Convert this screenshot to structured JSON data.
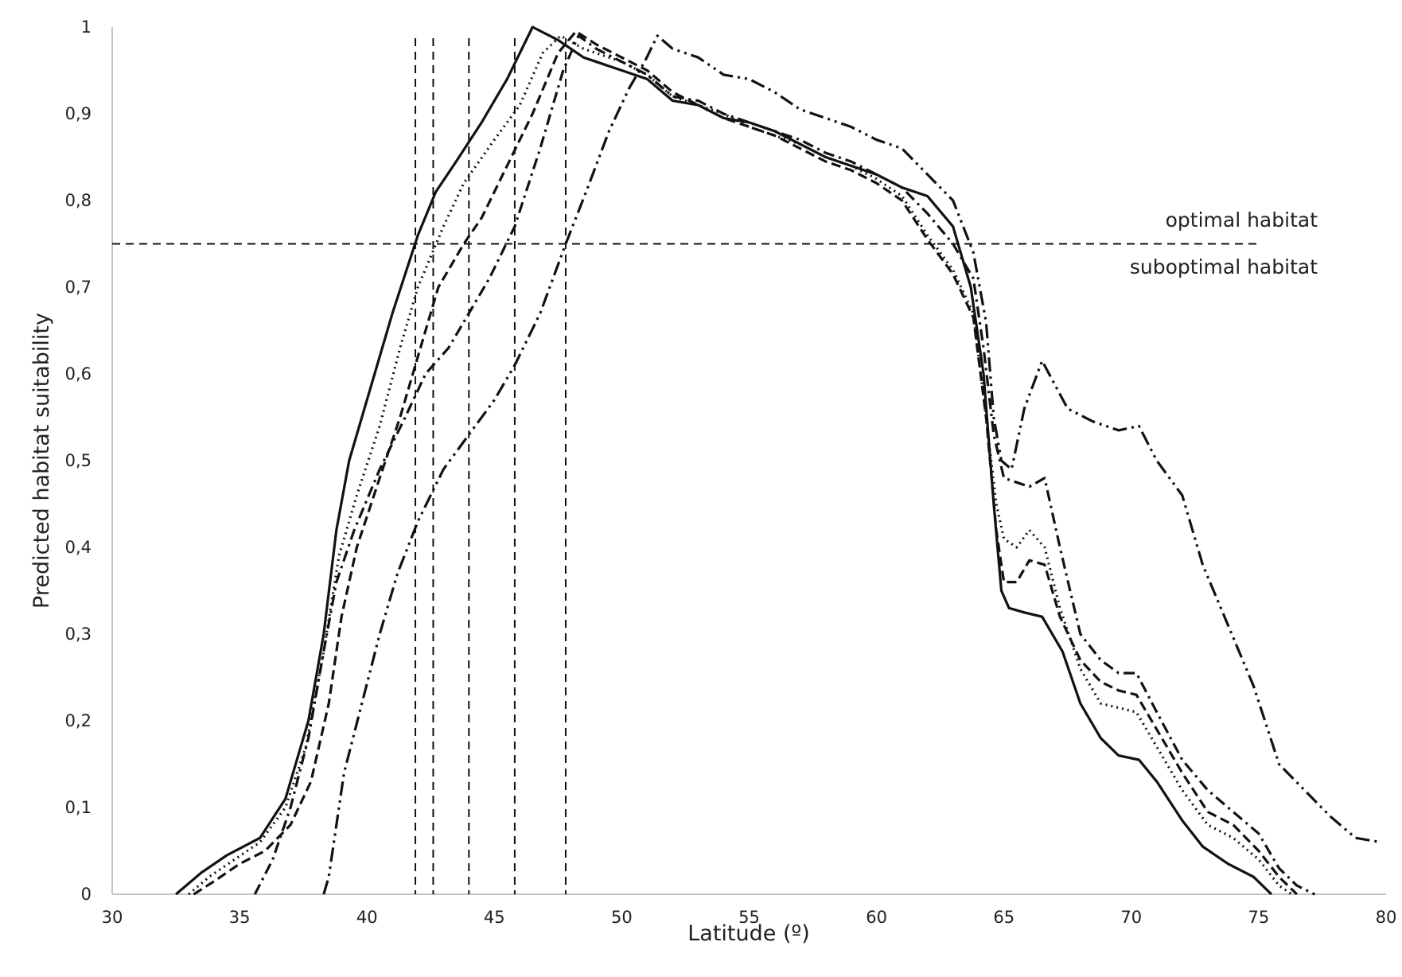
{
  "chart_data": {
    "type": "line",
    "title": "",
    "xlabel": "Latitude (º)",
    "ylabel": "Predicted habitat suitability",
    "xlim": [
      30,
      80
    ],
    "ylim": [
      0,
      1
    ],
    "x_ticks": [
      30,
      35,
      40,
      45,
      50,
      55,
      60,
      65,
      70,
      75,
      80
    ],
    "x_tick_labels": [
      "30",
      "35",
      "40",
      "45",
      "50",
      "55",
      "60",
      "65",
      "70",
      "75",
      "80"
    ],
    "y_ticks": [
      0,
      0.1,
      0.2,
      0.3,
      0.4,
      0.5,
      0.6,
      0.7,
      0.8,
      0.9,
      1
    ],
    "y_tick_labels": [
      "0",
      "0,1",
      "0,2",
      "0,3",
      "0,4",
      "0,5",
      "0,6",
      "0,7",
      "0,8",
      "0,9",
      "1"
    ],
    "threshold": {
      "y": 0.75,
      "label_above": "optimal habitat",
      "label_below": "suboptimal habitat"
    },
    "vertical_lines": [
      41.9,
      42.6,
      44.0,
      45.8,
      47.8
    ],
    "series": [
      {
        "name": "solid",
        "dash": "",
        "points": [
          [
            32.5,
            0
          ],
          [
            33.5,
            0.025
          ],
          [
            34.5,
            0.045
          ],
          [
            35.8,
            0.065
          ],
          [
            36.8,
            0.11
          ],
          [
            37.7,
            0.2
          ],
          [
            38.3,
            0.3
          ],
          [
            38.8,
            0.42
          ],
          [
            39.3,
            0.5
          ],
          [
            40.0,
            0.57
          ],
          [
            41.0,
            0.67
          ],
          [
            42.0,
            0.76
          ],
          [
            42.7,
            0.81
          ],
          [
            43.5,
            0.845
          ],
          [
            44.5,
            0.89
          ],
          [
            45.5,
            0.94
          ],
          [
            46.5,
            1.0
          ],
          [
            47.5,
            0.985
          ],
          [
            48.5,
            0.965
          ],
          [
            50.0,
            0.95
          ],
          [
            51.0,
            0.94
          ],
          [
            52.0,
            0.915
          ],
          [
            53.0,
            0.91
          ],
          [
            54.0,
            0.895
          ],
          [
            55.0,
            0.89
          ],
          [
            56.0,
            0.88
          ],
          [
            57.0,
            0.865
          ],
          [
            58.0,
            0.85
          ],
          [
            59.0,
            0.84
          ],
          [
            60.0,
            0.83
          ],
          [
            61.0,
            0.815
          ],
          [
            62.0,
            0.805
          ],
          [
            63.0,
            0.77
          ],
          [
            63.7,
            0.7
          ],
          [
            64.2,
            0.6
          ],
          [
            64.6,
            0.45
          ],
          [
            64.9,
            0.35
          ],
          [
            65.2,
            0.33
          ],
          [
            65.8,
            0.325
          ],
          [
            66.5,
            0.32
          ],
          [
            67.3,
            0.28
          ],
          [
            68.0,
            0.22
          ],
          [
            68.8,
            0.18
          ],
          [
            69.5,
            0.16
          ],
          [
            70.3,
            0.155
          ],
          [
            71.0,
            0.13
          ],
          [
            72.0,
            0.085
          ],
          [
            72.8,
            0.055
          ],
          [
            73.8,
            0.035
          ],
          [
            74.8,
            0.02
          ],
          [
            75.5,
            0
          ]
        ]
      },
      {
        "name": "dotted",
        "dash": "2 5",
        "points": [
          [
            33.0,
            0
          ],
          [
            33.8,
            0.02
          ],
          [
            34.8,
            0.04
          ],
          [
            35.8,
            0.06
          ],
          [
            36.8,
            0.1
          ],
          [
            37.6,
            0.17
          ],
          [
            38.3,
            0.28
          ],
          [
            38.9,
            0.39
          ],
          [
            39.6,
            0.46
          ],
          [
            40.5,
            0.54
          ],
          [
            41.3,
            0.63
          ],
          [
            42.0,
            0.7
          ],
          [
            43.0,
            0.77
          ],
          [
            43.8,
            0.82
          ],
          [
            45.0,
            0.87
          ],
          [
            46.0,
            0.91
          ],
          [
            46.9,
            0.97
          ],
          [
            47.6,
            0.99
          ],
          [
            48.5,
            0.975
          ],
          [
            50.0,
            0.96
          ],
          [
            51.0,
            0.945
          ],
          [
            52.0,
            0.92
          ],
          [
            53.0,
            0.91
          ],
          [
            54.0,
            0.9
          ],
          [
            55.0,
            0.885
          ],
          [
            56.0,
            0.875
          ],
          [
            57.0,
            0.865
          ],
          [
            58.0,
            0.85
          ],
          [
            59.0,
            0.84
          ],
          [
            60.0,
            0.825
          ],
          [
            61.0,
            0.805
          ],
          [
            62.0,
            0.76
          ],
          [
            63.0,
            0.72
          ],
          [
            63.8,
            0.67
          ],
          [
            64.3,
            0.55
          ],
          [
            64.7,
            0.45
          ],
          [
            65.0,
            0.41
          ],
          [
            65.5,
            0.4
          ],
          [
            66.0,
            0.42
          ],
          [
            66.6,
            0.4
          ],
          [
            67.2,
            0.33
          ],
          [
            68.0,
            0.26
          ],
          [
            68.8,
            0.22
          ],
          [
            69.5,
            0.215
          ],
          [
            70.2,
            0.21
          ],
          [
            71.0,
            0.17
          ],
          [
            72.0,
            0.12
          ],
          [
            73.0,
            0.08
          ],
          [
            74.0,
            0.065
          ],
          [
            75.0,
            0.04
          ],
          [
            75.8,
            0.01
          ],
          [
            76.3,
            0
          ]
        ]
      },
      {
        "name": "dashed",
        "dash": "12 6",
        "points": [
          [
            33.2,
            0
          ],
          [
            34.0,
            0.015
          ],
          [
            35.0,
            0.035
          ],
          [
            36.0,
            0.05
          ],
          [
            37.0,
            0.08
          ],
          [
            37.8,
            0.13
          ],
          [
            38.5,
            0.22
          ],
          [
            39.0,
            0.32
          ],
          [
            39.6,
            0.4
          ],
          [
            40.5,
            0.48
          ],
          [
            41.3,
            0.55
          ],
          [
            42.0,
            0.62
          ],
          [
            42.8,
            0.7
          ],
          [
            43.8,
            0.75
          ],
          [
            44.5,
            0.78
          ],
          [
            45.5,
            0.84
          ],
          [
            46.5,
            0.9
          ],
          [
            47.5,
            0.97
          ],
          [
            48.2,
            0.995
          ],
          [
            49.0,
            0.98
          ],
          [
            50.0,
            0.965
          ],
          [
            51.0,
            0.95
          ],
          [
            52.0,
            0.925
          ],
          [
            53.0,
            0.91
          ],
          [
            54.0,
            0.895
          ],
          [
            55.0,
            0.885
          ],
          [
            56.0,
            0.875
          ],
          [
            57.0,
            0.86
          ],
          [
            58.0,
            0.845
          ],
          [
            59.0,
            0.835
          ],
          [
            60.0,
            0.82
          ],
          [
            61.0,
            0.8
          ],
          [
            62.0,
            0.755
          ],
          [
            63.0,
            0.715
          ],
          [
            63.8,
            0.665
          ],
          [
            64.3,
            0.55
          ],
          [
            64.7,
            0.42
          ],
          [
            65.0,
            0.36
          ],
          [
            65.5,
            0.36
          ],
          [
            66.0,
            0.385
          ],
          [
            66.6,
            0.38
          ],
          [
            67.2,
            0.32
          ],
          [
            68.0,
            0.27
          ],
          [
            68.8,
            0.245
          ],
          [
            69.5,
            0.235
          ],
          [
            70.2,
            0.23
          ],
          [
            71.0,
            0.19
          ],
          [
            72.0,
            0.14
          ],
          [
            73.0,
            0.095
          ],
          [
            74.0,
            0.08
          ],
          [
            75.0,
            0.05
          ],
          [
            75.8,
            0.02
          ],
          [
            76.5,
            0
          ]
        ]
      },
      {
        "name": "dash-dot",
        "dash": "14 6 3 6",
        "points": [
          [
            35.6,
            0
          ],
          [
            36.3,
            0.04
          ],
          [
            37.0,
            0.1
          ],
          [
            37.7,
            0.18
          ],
          [
            38.3,
            0.28
          ],
          [
            38.8,
            0.36
          ],
          [
            39.5,
            0.42
          ],
          [
            40.5,
            0.49
          ],
          [
            41.5,
            0.55
          ],
          [
            42.3,
            0.6
          ],
          [
            43.2,
            0.63
          ],
          [
            44.0,
            0.67
          ],
          [
            44.8,
            0.71
          ],
          [
            45.8,
            0.77
          ],
          [
            46.8,
            0.86
          ],
          [
            47.7,
            0.95
          ],
          [
            48.3,
            0.99
          ],
          [
            49.0,
            0.975
          ],
          [
            50.0,
            0.96
          ],
          [
            51.0,
            0.945
          ],
          [
            52.0,
            0.92
          ],
          [
            53.0,
            0.915
          ],
          [
            54.0,
            0.9
          ],
          [
            55.0,
            0.89
          ],
          [
            56.0,
            0.88
          ],
          [
            57.0,
            0.87
          ],
          [
            58.0,
            0.855
          ],
          [
            59.0,
            0.845
          ],
          [
            60.0,
            0.83
          ],
          [
            61.0,
            0.815
          ],
          [
            62.0,
            0.785
          ],
          [
            63.0,
            0.75
          ],
          [
            63.8,
            0.71
          ],
          [
            64.2,
            0.63
          ],
          [
            64.6,
            0.53
          ],
          [
            65.0,
            0.48
          ],
          [
            65.5,
            0.475
          ],
          [
            66.0,
            0.47
          ],
          [
            66.6,
            0.48
          ],
          [
            67.2,
            0.4
          ],
          [
            68.0,
            0.3
          ],
          [
            68.8,
            0.27
          ],
          [
            69.5,
            0.255
          ],
          [
            70.2,
            0.255
          ],
          [
            71.0,
            0.21
          ],
          [
            72.0,
            0.155
          ],
          [
            73.0,
            0.12
          ],
          [
            74.0,
            0.095
          ],
          [
            75.0,
            0.07
          ],
          [
            75.8,
            0.03
          ],
          [
            76.5,
            0.01
          ],
          [
            77.2,
            0
          ]
        ]
      },
      {
        "name": "dash-dot-dot",
        "dash": "18 6 3 6 3 6",
        "points": [
          [
            38.3,
            0
          ],
          [
            38.5,
            0.02
          ],
          [
            39.1,
            0.14
          ],
          [
            39.8,
            0.22
          ],
          [
            40.5,
            0.3
          ],
          [
            41.2,
            0.37
          ],
          [
            42.0,
            0.43
          ],
          [
            43.0,
            0.49
          ],
          [
            44.0,
            0.53
          ],
          [
            45.0,
            0.57
          ],
          [
            45.8,
            0.61
          ],
          [
            46.8,
            0.67
          ],
          [
            47.8,
            0.75
          ],
          [
            48.6,
            0.81
          ],
          [
            49.5,
            0.88
          ],
          [
            50.3,
            0.93
          ],
          [
            50.9,
            0.96
          ],
          [
            51.4,
            0.99
          ],
          [
            52.0,
            0.975
          ],
          [
            53.0,
            0.965
          ],
          [
            54.0,
            0.945
          ],
          [
            55.0,
            0.94
          ],
          [
            56.0,
            0.925
          ],
          [
            57.0,
            0.905
          ],
          [
            58.0,
            0.895
          ],
          [
            59.0,
            0.885
          ],
          [
            60.0,
            0.87
          ],
          [
            61.0,
            0.86
          ],
          [
            62.0,
            0.83
          ],
          [
            63.0,
            0.8
          ],
          [
            63.8,
            0.74
          ],
          [
            64.3,
            0.66
          ],
          [
            64.6,
            0.55
          ],
          [
            64.9,
            0.5
          ],
          [
            65.3,
            0.49
          ],
          [
            65.8,
            0.56
          ],
          [
            66.5,
            0.615
          ],
          [
            67.5,
            0.56
          ],
          [
            68.5,
            0.545
          ],
          [
            69.5,
            0.535
          ],
          [
            70.3,
            0.54
          ],
          [
            71.0,
            0.5
          ],
          [
            72.0,
            0.46
          ],
          [
            72.8,
            0.38
          ],
          [
            73.8,
            0.31
          ],
          [
            74.8,
            0.24
          ],
          [
            75.8,
            0.15
          ],
          [
            76.8,
            0.12
          ],
          [
            77.8,
            0.09
          ],
          [
            78.8,
            0.065
          ],
          [
            79.8,
            0.06
          ]
        ]
      }
    ]
  }
}
